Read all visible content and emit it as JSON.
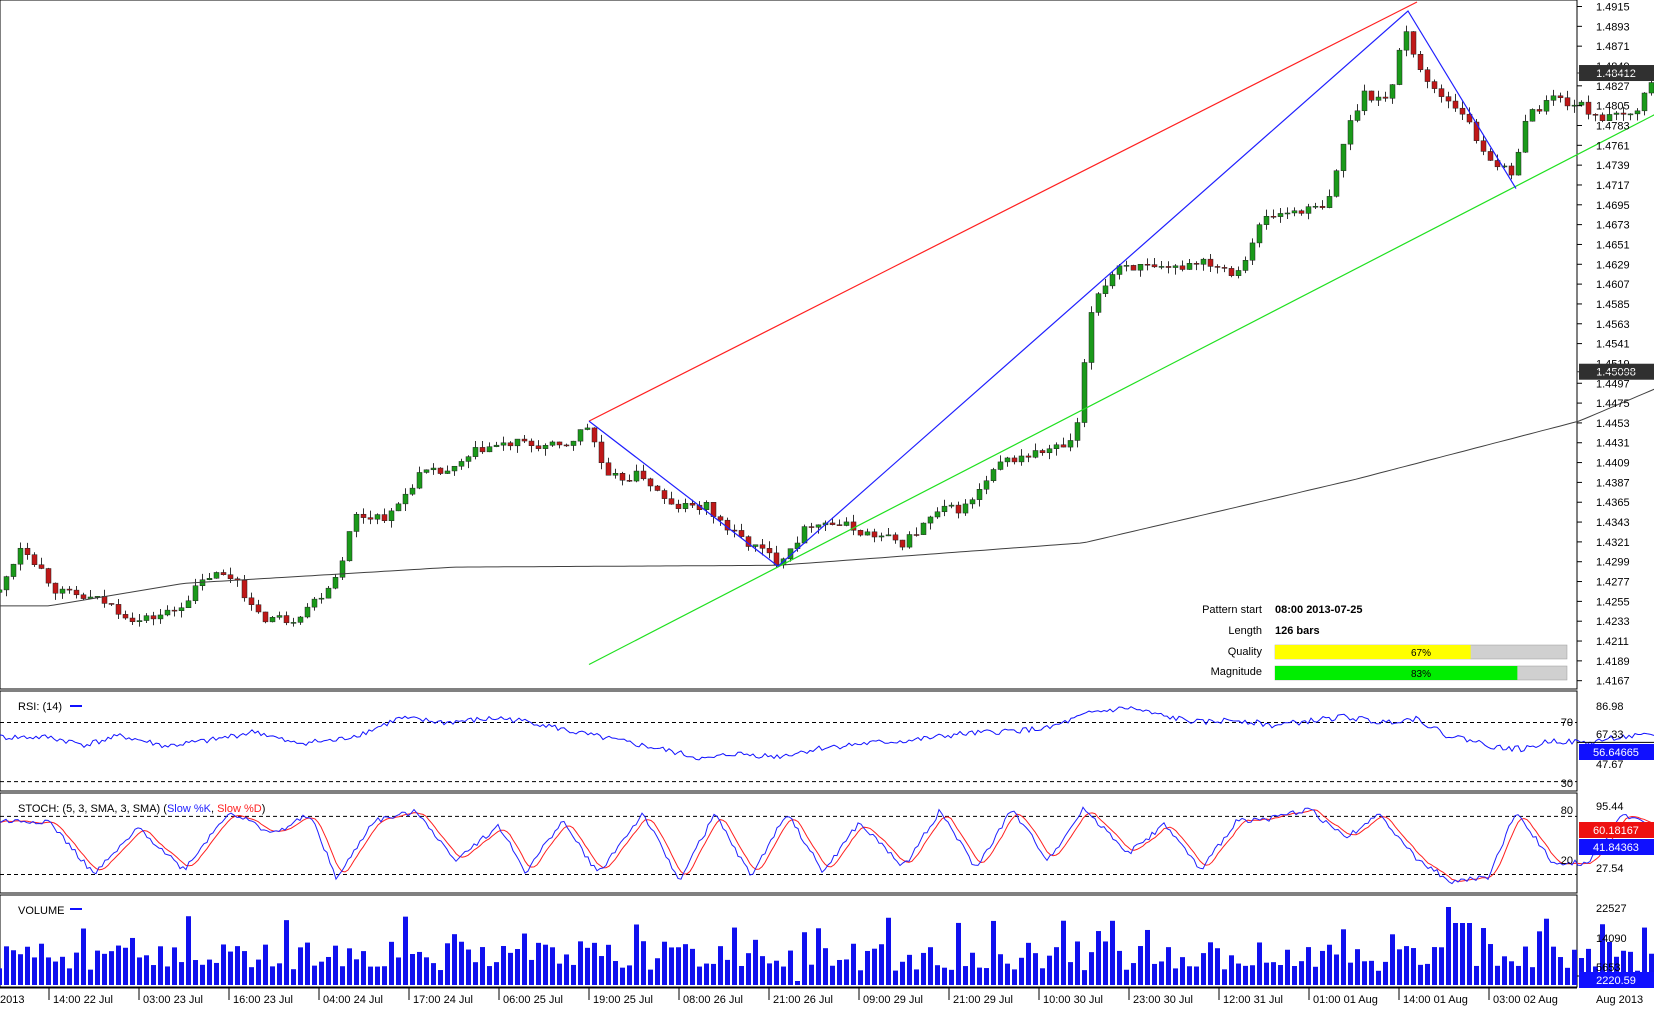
{
  "colors": {
    "up": "#1a9a1a",
    "down": "#c01818",
    "wick": "#333333",
    "channel_top": "#ff2020",
    "channel_bottom": "#20e020",
    "pattern": "#2020ff",
    "ma": "#404040",
    "rsi": "#1010ff",
    "stoch_k": "#2020ff",
    "stoch_d": "#ff2020",
    "volume": "#1010ee",
    "quality_bar": "#ffff00",
    "magnitude_bar": "#00ee00",
    "price_tag": "#303030",
    "rsi_tag": "#1010ff",
    "stoch_k_tag": "#ee1010",
    "stoch_d_tag": "#1010ff",
    "volume_tag": "#1010ff"
  },
  "price_axis": {
    "ticks": [
      "1.4915",
      "1.4893",
      "1.4871",
      "1.4827",
      "1.4805",
      "1.4783",
      "1.4761",
      "1.4739",
      "1.4717",
      "1.4695",
      "1.4673",
      "1.4651",
      "1.4629",
      "1.4607",
      "1.4585",
      "1.4563",
      "1.4541",
      "1.4497",
      "1.4475",
      "1.4453",
      "1.4431",
      "1.4409",
      "1.4387",
      "1.4365",
      "1.4343",
      "1.4321",
      "1.4299",
      "1.4277",
      "1.4255",
      "1.4233",
      "1.4211",
      "1.4189",
      "1.4167"
    ],
    "partial_ticks": [
      "1.4849",
      "1.4519"
    ],
    "current_price": "1.48412",
    "ma_value": "1.45098"
  },
  "time_axis": {
    "start_label": "2013",
    "labels": [
      "14:00 22 Jul",
      "03:00 23 Jul",
      "16:00 23 Jul",
      "04:00 24 Jul",
      "17:00 24 Jul",
      "06:00 25 Jul",
      "19:00 25 Jul",
      "08:00 26 Jul",
      "21:00 26 Jul",
      "09:00 29 Jul",
      "21:00 29 Jul",
      "10:00 30 Jul",
      "23:00 30 Jul",
      "12:00 31 Jul",
      "01:00 01 Aug",
      "14:00 01 Aug",
      "03:00 02 Aug"
    ],
    "end_label": "Aug 2013"
  },
  "pattern_info": {
    "start_label": "Pattern start",
    "start_value": "08:00 2013-07-25",
    "length_label": "Length",
    "length_value": "126 bars",
    "quality_label": "Quality",
    "quality_value": "67%",
    "quality_fraction": 0.67,
    "magnitude_label": "Magnitude",
    "magnitude_value": "83%",
    "magnitude_fraction": 0.83
  },
  "rsi_panel": {
    "title": "RSI: (14)",
    "ticks": [
      "86.98",
      "67.33",
      "47.67"
    ],
    "levels": [
      "70",
      "30"
    ],
    "current": "56.64665"
  },
  "stoch_panel": {
    "title_prefix": "STOCH: (5, 3, SMA, 3, SMA) (",
    "k_label": "Slow %K",
    "separator": ", ",
    "d_label": "Slow %D",
    "title_suffix": ")",
    "ticks": [
      "95.44",
      "27.54"
    ],
    "levels": [
      "80",
      "20"
    ],
    "current_d": "60.18167",
    "current_k": "41.84363"
  },
  "volume_panel": {
    "title": "VOLUME",
    "ticks": [
      "22527",
      "14090",
      "5653"
    ],
    "current": "2220.59"
  },
  "chart_data": {
    "type": "candlestick",
    "instrument_precision": 5,
    "ylim": [
      1.416,
      1.492
    ],
    "pattern": {
      "channel_top": [
        [
          6.0,
          1.4455
        ],
        [
          15.2,
          1.492
        ]
      ],
      "channel_bottom": [
        [
          6.0,
          1.4185
        ],
        [
          18.5,
          1.4829
        ]
      ],
      "zigzag": [
        [
          6.0,
          1.4455
        ],
        [
          8.1,
          1.4294
        ],
        [
          15.1,
          1.491
        ],
        [
          16.3,
          1.4713
        ]
      ]
    },
    "moving_average_anchors": [
      [
        0,
        1.425
      ],
      [
        1.5,
        1.4275
      ],
      [
        4.5,
        1.4293
      ],
      [
        8.1,
        1.4295
      ],
      [
        11.5,
        1.432
      ],
      [
        14.5,
        1.439
      ],
      [
        17.0,
        1.4455
      ],
      [
        18.3,
        1.451
      ]
    ],
    "rsi_anchors": [
      [
        0,
        60
      ],
      [
        0.4,
        55
      ],
      [
        0.8,
        61
      ],
      [
        1.3,
        54
      ],
      [
        1.8,
        58
      ],
      [
        2.3,
        64
      ],
      [
        2.7,
        56
      ],
      [
        3.2,
        58
      ],
      [
        3.5,
        63
      ],
      [
        3.9,
        73
      ],
      [
        4.4,
        70
      ],
      [
        5.0,
        73
      ],
      [
        5.4,
        70
      ],
      [
        5.8,
        64
      ],
      [
        6.3,
        58
      ],
      [
        6.8,
        52
      ],
      [
        7.3,
        45
      ],
      [
        7.6,
        49
      ],
      [
        8.1,
        47
      ],
      [
        8.6,
        53
      ],
      [
        9.1,
        56
      ],
      [
        9.6,
        58
      ],
      [
        10.1,
        62
      ],
      [
        10.6,
        64
      ],
      [
        11.1,
        66
      ],
      [
        11.6,
        77
      ],
      [
        12.0,
        80
      ],
      [
        12.4,
        74
      ],
      [
        12.8,
        70
      ],
      [
        13.2,
        72
      ],
      [
        13.6,
        68
      ],
      [
        14.0,
        71
      ],
      [
        14.4,
        74
      ],
      [
        14.8,
        70
      ],
      [
        15.2,
        73
      ],
      [
        15.5,
        62
      ],
      [
        15.8,
        58
      ],
      [
        16.1,
        53
      ],
      [
        16.4,
        52
      ],
      [
        16.7,
        58
      ],
      [
        17.1,
        56
      ],
      [
        17.4,
        60
      ],
      [
        17.8,
        61
      ],
      [
        18.1,
        64
      ],
      [
        18.3,
        57
      ]
    ],
    "stoch_k_cycles": [
      [
        0.0,
        75
      ],
      [
        0.5,
        20
      ],
      [
        1.0,
        68
      ],
      [
        1.5,
        25
      ],
      [
        2.0,
        85
      ],
      [
        2.5,
        62
      ],
      [
        2.9,
        82
      ],
      [
        3.2,
        15
      ],
      [
        3.6,
        75
      ],
      [
        4.1,
        85
      ],
      [
        4.5,
        35
      ],
      [
        5.0,
        70
      ],
      [
        5.3,
        22
      ],
      [
        5.7,
        76
      ],
      [
        6.1,
        21
      ],
      [
        6.6,
        83
      ],
      [
        7.0,
        14
      ],
      [
        7.4,
        82
      ],
      [
        7.8,
        18
      ],
      [
        8.2,
        84
      ],
      [
        8.6,
        22
      ],
      [
        9.0,
        73
      ],
      [
        9.5,
        28
      ],
      [
        9.9,
        86
      ],
      [
        10.3,
        26
      ],
      [
        10.7,
        87
      ],
      [
        11.1,
        35
      ],
      [
        11.5,
        88
      ],
      [
        12.0,
        42
      ],
      [
        12.4,
        72
      ],
      [
        12.8,
        24
      ],
      [
        13.2,
        76
      ],
      [
        13.6,
        78
      ],
      [
        14.0,
        88
      ],
      [
        14.4,
        58
      ],
      [
        14.8,
        82
      ],
      [
        15.2,
        35
      ],
      [
        15.6,
        12
      ],
      [
        16.0,
        18
      ],
      [
        16.3,
        85
      ],
      [
        16.7,
        33
      ],
      [
        17.1,
        32
      ],
      [
        17.5,
        82
      ],
      [
        17.9,
        68
      ],
      [
        18.1,
        41.8
      ]
    ],
    "volume_profile": "generated-random-heights, peak at 14:00 01 Aug"
  }
}
